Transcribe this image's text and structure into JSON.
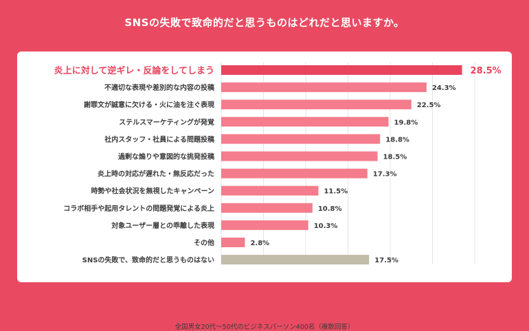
{
  "title": "SNSの失敗で致命的だと思うものはどれだと思いますか。",
  "note": "全国男女20代〜50代のビジネスパーソン400名（複数回答）",
  "colors": {
    "background": "#e94a62",
    "top_bar": "#e8445e",
    "bar": "#f47c8d",
    "none_bar": "#c2bda9",
    "top_label": "#e8445e",
    "label": "#3b3b3b",
    "grid": "#e4e4e4"
  },
  "chart_data": {
    "type": "bar",
    "orientation": "horizontal",
    "title": "SNSの失敗で致命的だと思うものはどれだと思いますか。",
    "categories": [
      "炎上に対して逆ギレ・反論をしてしまう",
      "不適切な表現や差別的な内容の投稿",
      "謝罪文が誠意に欠ける・火に油を注ぐ表現",
      "ステルスマーケティングが発覚",
      "社内スタッフ・社員による問題投稿",
      "過剰な煽りや意図的な挑発投稿",
      "炎上時の対応が遅れた・無反応だった",
      "時勢や社会状況を無視したキャンペーン",
      "コラボ相手や起用タレントの問題発覚による炎上",
      "対象ユーザー層との乖離した表現",
      "その他",
      "SNSの失敗で、致命的だと思うものはない"
    ],
    "values": [
      28.5,
      24.3,
      22.5,
      19.8,
      18.8,
      18.5,
      17.3,
      11.5,
      10.8,
      10.3,
      2.8,
      17.5
    ],
    "value_labels": [
      "28.5%",
      "24.3%",
      "22.5%",
      "19.8%",
      "18.8%",
      "18.5%",
      "17.3%",
      "11.5%",
      "10.8%",
      "10.3%",
      "2.8%",
      "17.5%"
    ],
    "xlim": [
      0,
      30
    ],
    "grid": true
  }
}
